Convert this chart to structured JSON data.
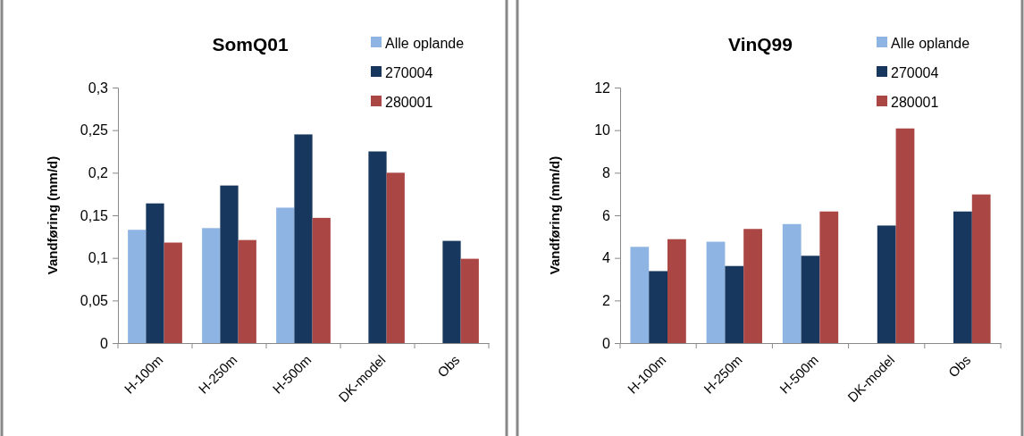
{
  "chart_data": [
    {
      "type": "bar",
      "title": "SomQ01",
      "ylabel": "Vandføring (mm/d)",
      "categories": [
        "H-100m",
        "H-250m",
        "H-500m",
        "DK-model",
        "Obs"
      ],
      "series": [
        {
          "name": "Alle oplande",
          "color": "#8eb4e3",
          "values": [
            0.133,
            0.135,
            0.159,
            null,
            null
          ]
        },
        {
          "name": "270004",
          "color": "#17375e",
          "values": [
            0.164,
            0.185,
            0.245,
            0.225,
            0.12
          ]
        },
        {
          "name": "280001",
          "color": "#aa4643",
          "values": [
            0.118,
            0.121,
            0.147,
            0.2,
            0.099
          ]
        }
      ],
      "ylim": [
        0,
        0.3
      ],
      "yticks": [
        0,
        {
          "value": 0.05,
          "label": "0,05"
        },
        {
          "value": 0.1,
          "label": "0,1"
        },
        {
          "value": 0.15,
          "label": "0,15"
        },
        {
          "value": 0.2,
          "label": "0,2"
        },
        {
          "value": 0.25,
          "label": "0,25"
        },
        {
          "value": 0.3,
          "label": "0,3"
        }
      ],
      "grid": false,
      "legend": "top right"
    },
    {
      "type": "bar",
      "title": "VinQ99",
      "ylabel": "Vandføring (mm/d)",
      "categories": [
        "H-100m",
        "H-250m",
        "H-500m",
        "DK-model",
        "Obs"
      ],
      "series": [
        {
          "name": "Alle oplande",
          "color": "#8eb4e3",
          "values": [
            4.52,
            4.76,
            5.59,
            null,
            null
          ]
        },
        {
          "name": "270004",
          "color": "#17375e",
          "values": [
            3.38,
            3.62,
            4.1,
            5.52,
            6.18
          ]
        },
        {
          "name": "280001",
          "color": "#aa4643",
          "values": [
            4.88,
            5.36,
            6.18,
            10.08,
            6.98
          ]
        }
      ],
      "ylim": [
        0,
        12
      ],
      "yticks": [
        0,
        2,
        4,
        6,
        8,
        10,
        12
      ],
      "grid": false,
      "legend": "top right"
    }
  ]
}
